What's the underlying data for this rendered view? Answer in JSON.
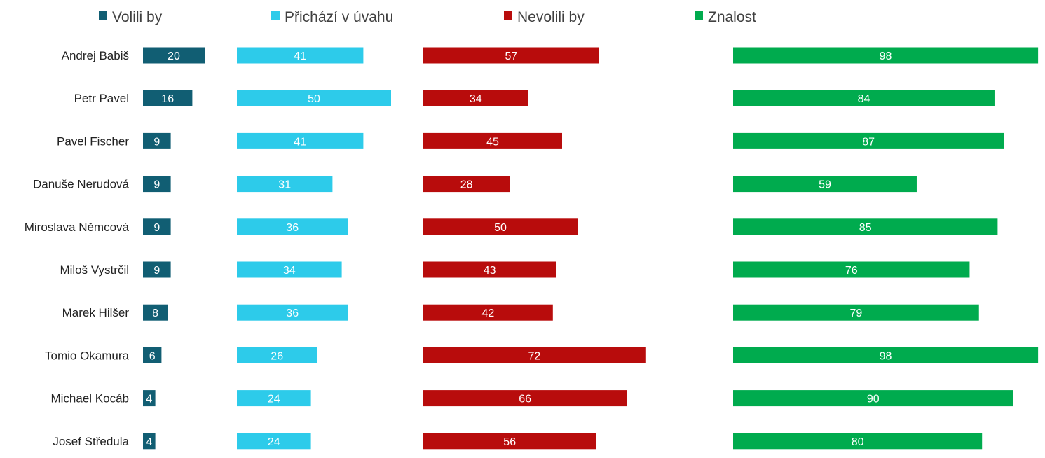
{
  "chart_data": {
    "type": "bar",
    "orientation": "horizontal",
    "layout": "small-multiples",
    "categories": [
      "Andrej Babiš",
      "Petr Pavel",
      "Pavel Fischer",
      "Danuše Nerudová",
      "Miroslava Němcová",
      "Miloš Vystrčil",
      "Marek Hilšer",
      "Tomio Okamura",
      "Michael Kocáb",
      "Josef Středula"
    ],
    "series": [
      {
        "name": "Volili by",
        "color": "#115e73",
        "values": [
          20,
          16,
          9,
          9,
          9,
          9,
          8,
          6,
          4,
          4
        ]
      },
      {
        "name": "Přichází v úvahu",
        "color": "#2dcbea",
        "values": [
          41,
          50,
          41,
          31,
          36,
          34,
          36,
          26,
          24,
          24
        ]
      },
      {
        "name": "Nevolili by",
        "color": "#b80c0c",
        "values": [
          57,
          34,
          45,
          28,
          50,
          43,
          42,
          72,
          66,
          56
        ]
      },
      {
        "name": "Znalost",
        "color": "#00ab4e",
        "values": [
          98,
          84,
          87,
          59,
          85,
          76,
          79,
          98,
          90,
          80
        ]
      }
    ],
    "legend": "top",
    "grid": false,
    "data_labels": true
  }
}
